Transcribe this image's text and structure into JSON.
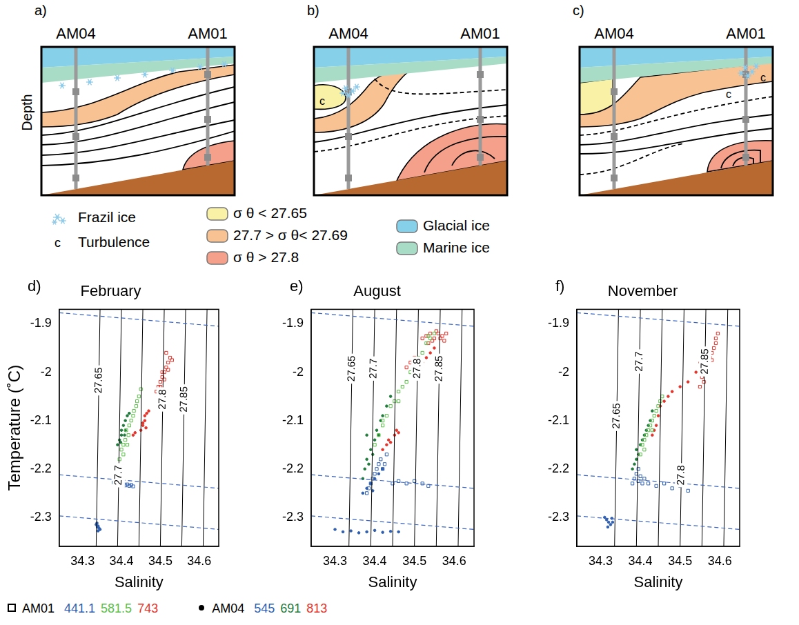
{
  "schematics": {
    "panels": [
      {
        "letter": "a)",
        "left_label": "AM04",
        "right_label": "AM01",
        "y_label": "Depth"
      },
      {
        "letter": "b)",
        "left_label": "AM04",
        "right_label": "AM01"
      },
      {
        "letter": "c)",
        "left_label": "AM04",
        "right_label": "AM01"
      }
    ],
    "legend": [
      {
        "symbol": "frazil",
        "label": "Frazil ice"
      },
      {
        "symbol": "c",
        "label": "Turbulence"
      },
      {
        "color": "#f9f1a5",
        "label": "σ θ < 27.65"
      },
      {
        "color": "#f9c292",
        "label": "27.7 > σ θ< 27.69"
      },
      {
        "color": "#f4a08a",
        "label": "σ θ > 27.8"
      },
      {
        "color": "#86d0ea",
        "label": "Glacial ice"
      },
      {
        "color": "#a9dcc6",
        "label": "Marine ice"
      }
    ]
  },
  "chart_data": [
    {
      "type": "scatter",
      "letter": "d)",
      "title": "February",
      "x_label": "Salinity",
      "y_label": "Temperature (˚C)",
      "xlim": [
        34.24,
        34.65
      ],
      "xticks": [
        34.3,
        34.4,
        34.5,
        34.6
      ],
      "ylim": [
        -2.36,
        -1.87
      ],
      "yticks": [
        -1.9,
        -2,
        -2.1,
        -2.2,
        -2.3
      ],
      "grid": false,
      "freezing_lines": [
        {
          "x": [
            34.24,
            34.65
          ],
          "y": [
            -1.877,
            -1.905
          ],
          "color": "#3a64c0",
          "line_style": "dashed"
        },
        {
          "x": [
            34.24,
            34.65
          ],
          "y": [
            -2.212,
            -2.24
          ],
          "color": "#3a64c0",
          "line_style": "dashed"
        },
        {
          "x": [
            34.24,
            34.65
          ],
          "y": [
            -2.297,
            -2.325
          ],
          "color": "#3a64c0",
          "line_style": "dashed"
        }
      ],
      "isopycnals": [
        {
          "label": "27.65",
          "x": [
            34.335,
            34.345
          ],
          "y": [
            -2.36,
            -1.87
          ]
        },
        {
          "label": "27.7",
          "x": [
            34.39,
            34.4
          ],
          "y": [
            -2.36,
            -1.87
          ]
        },
        {
          "x": [
            34.445,
            34.455
          ],
          "y": [
            -2.36,
            -1.87
          ]
        },
        {
          "label": "27.8",
          "x": [
            34.5,
            34.51
          ],
          "y": [
            -2.36,
            -1.87
          ]
        },
        {
          "label": "27.85",
          "x": [
            34.555,
            34.565
          ],
          "y": [
            -2.36,
            -1.87
          ]
        },
        {
          "x": [
            34.61,
            34.62
          ],
          "y": [
            -2.36,
            -1.87
          ]
        }
      ],
      "series": [
        {
          "name": "441.1",
          "color": "#2f5fae",
          "marker": "square",
          "x": [
            34.38,
            34.385,
            34.39,
            34.395,
            34.4,
            34.405,
            34.41,
            34.415,
            34.42,
            34.425,
            34.43
          ],
          "y": [
            -2.228,
            -2.23,
            -2.232,
            -2.23,
            -2.233,
            -2.231,
            -2.234,
            -2.232,
            -2.235,
            -2.233,
            -2.236
          ]
        },
        {
          "name": "581.5",
          "color": "#5cbf4a",
          "marker": "square",
          "x": [
            34.395,
            34.4,
            34.405,
            34.41,
            34.412,
            34.418,
            34.42,
            34.425,
            34.43,
            34.432,
            34.438,
            34.44,
            34.445,
            34.45,
            34.405,
            34.415
          ],
          "y": [
            -2.18,
            -2.16,
            -2.15,
            -2.14,
            -2.12,
            -2.13,
            -2.11,
            -2.1,
            -2.09,
            -2.08,
            -2.07,
            -2.06,
            -2.05,
            -2.035,
            -2.17,
            -2.15
          ]
        },
        {
          "name": "743",
          "color": "#e3342b",
          "marker": "square",
          "x": [
            34.49,
            34.495,
            34.5,
            34.505,
            34.51,
            34.515,
            34.52,
            34.525,
            34.5,
            34.51,
            34.52,
            34.53,
            34.515,
            34.505
          ],
          "y": [
            -2.04,
            -2.03,
            -2.02,
            -2.01,
            -2.0,
            -1.99,
            -1.98,
            -1.97,
            -2.03,
            -2.015,
            -1.995,
            -1.975,
            -1.96,
            -2.0
          ]
        },
        {
          "name": "545",
          "color": "#2f5fae",
          "marker": "circle",
          "x": [
            34.335,
            34.338,
            34.34,
            34.342,
            34.345,
            34.34,
            34.337
          ],
          "y": [
            -2.315,
            -2.32,
            -2.318,
            -2.322,
            -2.325,
            -2.328,
            -2.312
          ]
        },
        {
          "name": "691",
          "color": "#1f7a3c",
          "marker": "circle",
          "x": [
            34.39,
            34.395,
            34.4,
            34.4,
            34.405,
            34.41,
            34.41,
            34.415,
            34.42,
            34.398,
            34.408
          ],
          "y": [
            -2.15,
            -2.14,
            -2.13,
            -2.12,
            -2.11,
            -2.12,
            -2.1,
            -2.09,
            -2.085,
            -2.145,
            -2.13
          ]
        },
        {
          "name": "813",
          "color": "#e3342b",
          "marker": "circle",
          "x": [
            34.43,
            34.435,
            34.45,
            34.455,
            34.46,
            34.46,
            34.465,
            34.47,
            34.455,
            34.463
          ],
          "y": [
            -2.13,
            -2.125,
            -2.12,
            -2.11,
            -2.1,
            -2.09,
            -2.085,
            -2.08,
            -2.105,
            -2.115
          ]
        }
      ]
    },
    {
      "type": "scatter",
      "letter": "e)",
      "title": "August",
      "x_label": "Salinity",
      "xlim": [
        34.24,
        34.65
      ],
      "xticks": [
        34.3,
        34.4,
        34.5,
        34.6
      ],
      "ylim": [
        -2.36,
        -1.87
      ],
      "yticks": [
        -1.9,
        -2,
        -2.1,
        -2.2,
        -2.3
      ],
      "grid": false,
      "freezing_lines": [
        {
          "x": [
            34.24,
            34.65
          ],
          "y": [
            -1.877,
            -1.905
          ],
          "color": "#3a64c0",
          "line_style": "dashed"
        },
        {
          "x": [
            34.24,
            34.65
          ],
          "y": [
            -2.212,
            -2.24
          ],
          "color": "#3a64c0",
          "line_style": "dashed"
        },
        {
          "x": [
            34.24,
            34.65
          ],
          "y": [
            -2.297,
            -2.325
          ],
          "color": "#3a64c0",
          "line_style": "dashed"
        }
      ],
      "isopycnals": [
        {
          "label": "27.65",
          "x": [
            34.335,
            34.345
          ],
          "y": [
            -2.36,
            -1.87
          ]
        },
        {
          "label": "27.7",
          "x": [
            34.39,
            34.4
          ],
          "y": [
            -2.36,
            -1.87
          ]
        },
        {
          "x": [
            34.445,
            34.455
          ],
          "y": [
            -2.36,
            -1.87
          ]
        },
        {
          "label": "27.8",
          "x": [
            34.5,
            34.51
          ],
          "y": [
            -2.36,
            -1.87
          ]
        },
        {
          "label": "27.85",
          "x": [
            34.555,
            34.565
          ],
          "y": [
            -2.36,
            -1.87
          ]
        },
        {
          "x": [
            34.61,
            34.62
          ],
          "y": [
            -2.36,
            -1.87
          ]
        }
      ],
      "series": [
        {
          "name": "441.1",
          "color": "#2f5fae",
          "marker": "square",
          "x": [
            34.38,
            34.385,
            34.39,
            34.395,
            34.4,
            34.405,
            34.41,
            34.415,
            34.42,
            34.425,
            34.43,
            34.445,
            34.46,
            34.48,
            34.5,
            34.52,
            34.535
          ],
          "y": [
            -2.25,
            -2.24,
            -2.23,
            -2.22,
            -2.21,
            -2.2,
            -2.19,
            -2.18,
            -2.2,
            -2.19,
            -2.17,
            -2.23,
            -2.225,
            -2.23,
            -2.225,
            -2.23,
            -2.235
          ]
        },
        {
          "name": "581.5",
          "color": "#5cbf4a",
          "marker": "square",
          "x": [
            34.4,
            34.41,
            34.42,
            34.43,
            34.44,
            34.45,
            34.46,
            34.47,
            34.48,
            34.49,
            34.5,
            34.51,
            34.52,
            34.53,
            34.54,
            34.55,
            34.42,
            34.46,
            34.5,
            34.535
          ],
          "y": [
            -2.15,
            -2.13,
            -2.11,
            -2.09,
            -2.07,
            -2.06,
            -2.04,
            -2.03,
            -2.02,
            -2.0,
            -1.99,
            -1.97,
            -1.96,
            -1.94,
            -1.93,
            -1.92,
            -2.1,
            -2.06,
            -1.98,
            -1.925
          ]
        },
        {
          "name": "743",
          "color": "#e3342b",
          "marker": "square",
          "x": [
            34.52,
            34.53,
            34.54,
            34.55,
            34.56,
            34.57,
            34.58,
            34.535,
            34.545,
            34.555,
            34.565,
            34.575,
            34.48,
            34.49,
            34.5,
            34.51
          ],
          "y": [
            -1.93,
            -1.925,
            -1.92,
            -1.93,
            -1.92,
            -1.925,
            -1.92,
            -1.94,
            -1.935,
            -1.915,
            -1.93,
            -1.935,
            -1.99,
            -1.98,
            -1.97,
            -1.985
          ]
        },
        {
          "name": "545",
          "color": "#2f5fae",
          "marker": "circle",
          "x": [
            34.3,
            34.32,
            34.34,
            34.36,
            34.38,
            34.4,
            34.42,
            34.44,
            34.46,
            34.37,
            34.38,
            34.39,
            34.4,
            34.41,
            34.42,
            34.395
          ],
          "y": [
            -2.325,
            -2.33,
            -2.328,
            -2.332,
            -2.33,
            -2.327,
            -2.331,
            -2.329,
            -2.33,
            -2.25,
            -2.24,
            -2.23,
            -2.22,
            -2.21,
            -2.2,
            -2.245
          ]
        },
        {
          "name": "691",
          "color": "#1f7a3c",
          "marker": "circle",
          "x": [
            34.37,
            34.375,
            34.38,
            34.385,
            34.39,
            34.395,
            34.4,
            34.405,
            34.41,
            34.415,
            34.42,
            34.43,
            34.44,
            34.38
          ],
          "y": [
            -2.22,
            -2.2,
            -2.18,
            -2.19,
            -2.16,
            -2.17,
            -2.14,
            -2.12,
            -2.13,
            -2.1,
            -2.09,
            -2.07,
            -2.05,
            -2.13
          ]
        },
        {
          "name": "813",
          "color": "#e3342b",
          "marker": "circle",
          "x": [
            34.42,
            34.43,
            34.435,
            34.44,
            34.45,
            34.455,
            34.46,
            34.5,
            34.51,
            34.52,
            34.53,
            34.54,
            34.55
          ],
          "y": [
            -2.16,
            -2.15,
            -2.14,
            -2.145,
            -2.13,
            -2.12,
            -2.125,
            -2.0,
            -1.99,
            -1.98,
            -1.97,
            -1.96,
            -1.95
          ]
        }
      ]
    },
    {
      "type": "scatter",
      "letter": "f)",
      "title": "November",
      "x_label": "Salinity",
      "xlim": [
        34.24,
        34.65
      ],
      "xticks": [
        34.3,
        34.4,
        34.5,
        34.6
      ],
      "ylim": [
        -2.36,
        -1.87
      ],
      "yticks": [
        -1.9,
        -2,
        -2.1,
        -2.2,
        -2.3
      ],
      "grid": false,
      "freezing_lines": [
        {
          "x": [
            34.24,
            34.65
          ],
          "y": [
            -1.877,
            -1.905
          ],
          "color": "#3a64c0",
          "line_style": "dashed"
        },
        {
          "x": [
            34.24,
            34.65
          ],
          "y": [
            -2.212,
            -2.24
          ],
          "color": "#3a64c0",
          "line_style": "dashed"
        },
        {
          "x": [
            34.24,
            34.65
          ],
          "y": [
            -2.297,
            -2.325
          ],
          "color": "#3a64c0",
          "line_style": "dashed"
        }
      ],
      "isopycnals": [
        {
          "label": "27.65",
          "x": [
            34.335,
            34.345
          ],
          "y": [
            -2.36,
            -1.87
          ]
        },
        {
          "label": "27.7",
          "x": [
            34.39,
            34.4
          ],
          "y": [
            -2.36,
            -1.87
          ]
        },
        {
          "x": [
            34.445,
            34.455
          ],
          "y": [
            -2.36,
            -1.87
          ]
        },
        {
          "label": "27.8",
          "x": [
            34.5,
            34.51
          ],
          "y": [
            -2.36,
            -1.87
          ]
        },
        {
          "label": "27.85",
          "x": [
            34.555,
            34.565
          ],
          "y": [
            -2.36,
            -1.87
          ]
        },
        {
          "x": [
            34.61,
            34.62
          ],
          "y": [
            -2.36,
            -1.87
          ]
        }
      ],
      "series": [
        {
          "name": "441.1",
          "color": "#2f5fae",
          "marker": "square",
          "x": [
            34.38,
            34.385,
            34.39,
            34.395,
            34.4,
            34.405,
            34.41,
            34.42,
            34.44,
            34.46,
            34.48,
            34.5,
            34.52,
            34.395
          ],
          "y": [
            -2.23,
            -2.22,
            -2.21,
            -2.225,
            -2.215,
            -2.23,
            -2.22,
            -2.23,
            -2.235,
            -2.23,
            -2.24,
            -2.235,
            -2.245,
            -2.2
          ]
        },
        {
          "name": "581.5",
          "color": "#5cbf4a",
          "marker": "square",
          "x": [
            34.4,
            34.405,
            34.41,
            34.415,
            34.42,
            34.425,
            34.43,
            34.435,
            34.44,
            34.445,
            34.45,
            34.455,
            34.41,
            34.43
          ],
          "y": [
            -2.17,
            -2.15,
            -2.14,
            -2.13,
            -2.12,
            -2.11,
            -2.1,
            -2.09,
            -2.08,
            -2.07,
            -2.06,
            -2.05,
            -2.16,
            -2.12
          ]
        },
        {
          "name": "743",
          "color": "#e3342b",
          "marker": "square",
          "x": [
            34.55,
            34.555,
            34.56,
            34.565,
            34.57,
            34.575,
            34.58,
            34.585,
            34.59,
            34.56,
            34.57,
            34.58,
            34.59,
            34.595
          ],
          "y": [
            -2.03,
            -2.01,
            -2.0,
            -1.99,
            -1.98,
            -1.97,
            -1.96,
            -1.95,
            -1.94,
            -2.02,
            -1.995,
            -1.975,
            -1.93,
            -1.92
          ]
        },
        {
          "name": "545",
          "color": "#2f5fae",
          "marker": "circle",
          "x": [
            34.31,
            34.315,
            34.32,
            34.325,
            34.33,
            34.318,
            34.328
          ],
          "y": [
            -2.3,
            -2.305,
            -2.31,
            -2.315,
            -2.31,
            -2.32,
            -2.302
          ]
        },
        {
          "name": "691",
          "color": "#1f7a3c",
          "marker": "circle",
          "x": [
            34.38,
            34.385,
            34.39,
            34.395,
            34.4,
            34.405,
            34.41,
            34.415,
            34.42,
            34.425,
            34.43,
            34.39
          ],
          "y": [
            -2.2,
            -2.19,
            -2.18,
            -2.17,
            -2.15,
            -2.14,
            -2.13,
            -2.12,
            -2.11,
            -2.1,
            -2.08,
            -2.16
          ]
        },
        {
          "name": "813",
          "color": "#e3342b",
          "marker": "circle",
          "x": [
            34.43,
            34.435,
            34.44,
            34.445,
            34.45,
            34.46,
            34.47,
            34.48,
            34.5,
            34.52,
            34.54,
            34.55
          ],
          "y": [
            -2.13,
            -2.12,
            -2.11,
            -2.09,
            -2.07,
            -2.06,
            -2.05,
            -2.04,
            -2.03,
            -2.02,
            -2.0,
            -1.98
          ]
        }
      ]
    }
  ],
  "legend_key": [
    {
      "label": "AM01",
      "marker": "square",
      "series": [
        "441.1",
        "581.5",
        "743"
      ]
    },
    {
      "label": "AM04",
      "marker": "circle",
      "series": [
        "545",
        "691",
        "813"
      ]
    }
  ]
}
